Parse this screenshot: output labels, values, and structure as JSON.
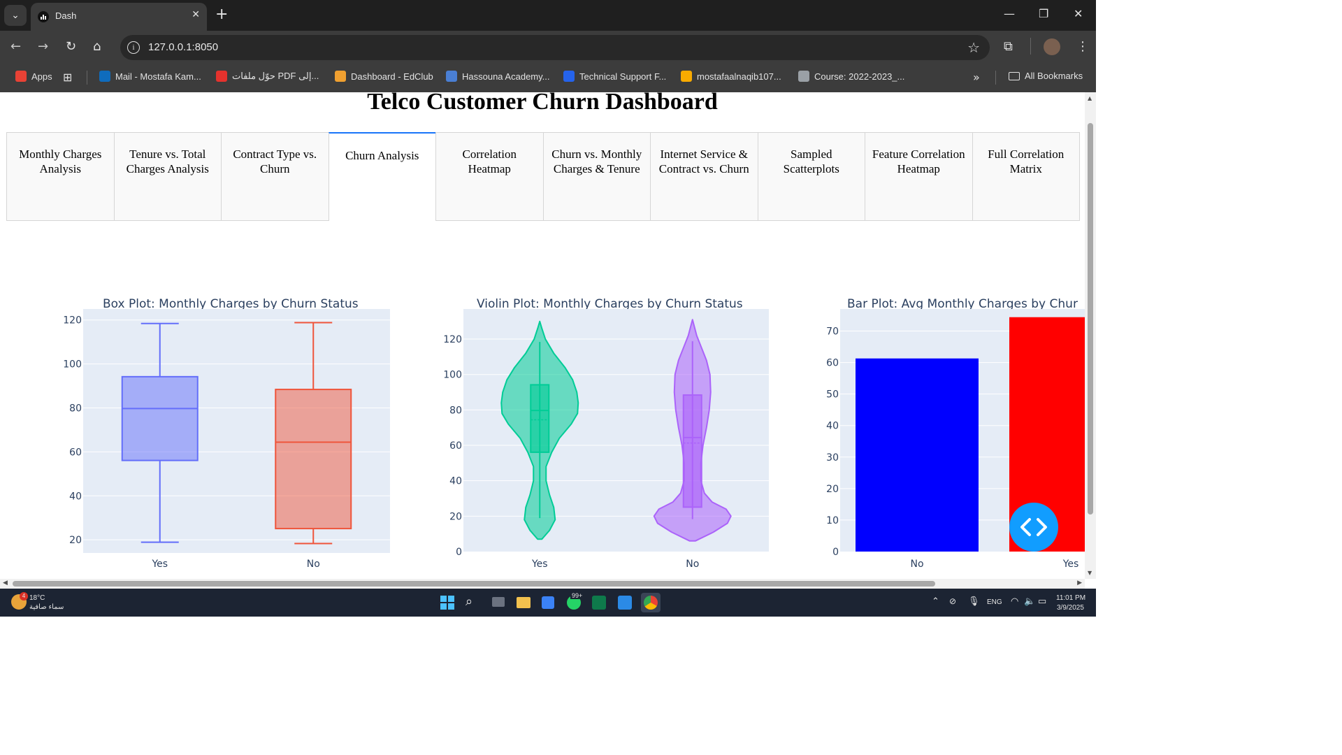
{
  "browser": {
    "tab_title": "Dash",
    "url": "127.0.0.1:8050",
    "bookmarks": [
      {
        "label": "Apps",
        "color": "#e94235"
      },
      {
        "label": "Mail - Mostafa Kam...",
        "color": "#0f6cbd"
      },
      {
        "label": "حوّل ملفات PDF إلى...",
        "color": "#e5322d"
      },
      {
        "label": "Dashboard - EdClub",
        "color": "#f0a030"
      },
      {
        "label": "Hassouna Academy...",
        "color": "#4a7fd4"
      },
      {
        "label": "Technical Support F...",
        "color": "#2563eb"
      },
      {
        "label": "mostafaalnaqib107...",
        "color": "#f9ab00"
      },
      {
        "label": "Course: 2022-2023_...",
        "color": "#9aa0a6"
      }
    ],
    "all_bookmarks": "All Bookmarks"
  },
  "page": {
    "title": "Telco Customer Churn Dashboard",
    "tabs": [
      {
        "label": "Monthly Charges Analysis",
        "active": false
      },
      {
        "label": "Tenure vs. Total Charges Analysis",
        "active": false
      },
      {
        "label": "Contract Type vs. Churn",
        "active": false
      },
      {
        "label": "Churn Analysis",
        "active": true
      },
      {
        "label": "Correlation Heatmap",
        "active": false
      },
      {
        "label": "Churn vs. Monthly Charges & Tenure",
        "active": false
      },
      {
        "label": "Internet Service & Contract vs. Churn",
        "active": false
      },
      {
        "label": "Sampled Scatterplots",
        "active": false
      },
      {
        "label": "Feature Correlation Heatmap",
        "active": false
      },
      {
        "label": "Full Correlation Matrix",
        "active": false
      }
    ]
  },
  "chart_data": [
    {
      "type": "box",
      "title": "Box Plot: Monthly Charges by Churn Status",
      "categories": [
        "Yes",
        "No"
      ],
      "colors": [
        "#636efa",
        "#ef553b"
      ],
      "series": [
        {
          "name": "Yes",
          "min": 18.9,
          "q1": 56.1,
          "median": 79.7,
          "q3": 94.2,
          "max": 118.4
        },
        {
          "name": "No",
          "min": 18.3,
          "q1": 25.1,
          "median": 64.4,
          "q3": 88.4,
          "max": 118.8
        }
      ],
      "ylim": [
        14,
        125
      ],
      "yticks": [
        20,
        40,
        60,
        80,
        100,
        120
      ]
    },
    {
      "type": "violin",
      "title": "Violin Plot: Monthly Charges by Churn Status",
      "categories": [
        "Yes",
        "No"
      ],
      "colors": [
        "#00cc96",
        "#ab63fa"
      ],
      "series": [
        {
          "name": "Yes",
          "min": 18.9,
          "q1": 56.1,
          "median": 79.7,
          "mean": 74.4,
          "q3": 94.2,
          "max": 118.4,
          "kde_min": 7,
          "kde_max": 130
        },
        {
          "name": "No",
          "min": 18.3,
          "q1": 25.1,
          "median": 64.4,
          "mean": 61.3,
          "q3": 88.4,
          "max": 118.8,
          "kde_min": 6,
          "kde_max": 131
        }
      ],
      "ylim": [
        0,
        137
      ],
      "yticks": [
        0,
        20,
        40,
        60,
        80,
        100,
        120
      ]
    },
    {
      "type": "bar",
      "title": "Bar Plot: Avg Monthly Charges by Chur",
      "categories": [
        "No",
        "Yes"
      ],
      "values": [
        61.3,
        74.4
      ],
      "colors": [
        "#0000ff",
        "#ff0000"
      ],
      "ylim": [
        0,
        77
      ],
      "yticks": [
        0,
        10,
        20,
        30,
        40,
        50,
        60,
        70
      ]
    }
  ],
  "taskbar": {
    "weather_temp": "18°C",
    "weather_desc": "سماء صافية",
    "weather_badge": "4",
    "lang": "ENG",
    "time": "11:01 PM",
    "date": "3/9/2025",
    "notif_badge": "99+"
  }
}
